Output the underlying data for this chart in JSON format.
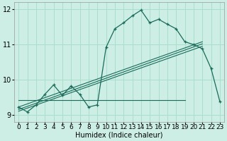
{
  "background_color": "#cceee4",
  "grid_color": "#aaddcc",
  "line_color": "#1a6b5a",
  "xlabel": "Humidex (Indice chaleur)",
  "xlim": [
    -0.5,
    23.5
  ],
  "ylim": [
    8.8,
    12.2
  ],
  "yticks": [
    9,
    10,
    11,
    12
  ],
  "main_curve_x": [
    0,
    1,
    2,
    3,
    4,
    5,
    6,
    7,
    8,
    9,
    10,
    11,
    12,
    13,
    14,
    15,
    16,
    17,
    18,
    19,
    20,
    21,
    22,
    23
  ],
  "main_curve_y": [
    9.22,
    9.08,
    9.28,
    9.58,
    9.85,
    9.55,
    9.82,
    9.58,
    9.22,
    9.28,
    10.92,
    11.45,
    11.62,
    11.82,
    11.98,
    11.62,
    11.72,
    11.58,
    11.45,
    11.08,
    11.0,
    10.88,
    10.32,
    9.38
  ],
  "trend1_x": [
    0,
    21
  ],
  "trend1_y": [
    9.22,
    11.08
  ],
  "trend2_x": [
    0,
    21
  ],
  "trend2_y": [
    9.15,
    11.02
  ],
  "trend3_x": [
    0,
    21
  ],
  "trend3_y": [
    9.1,
    10.95
  ],
  "flat_line_x": [
    0,
    19
  ],
  "flat_line_y": [
    9.42,
    9.42
  ],
  "xlabel_fontsize": 7,
  "tick_fontsize": 6.5,
  "ytick_fontsize": 7
}
